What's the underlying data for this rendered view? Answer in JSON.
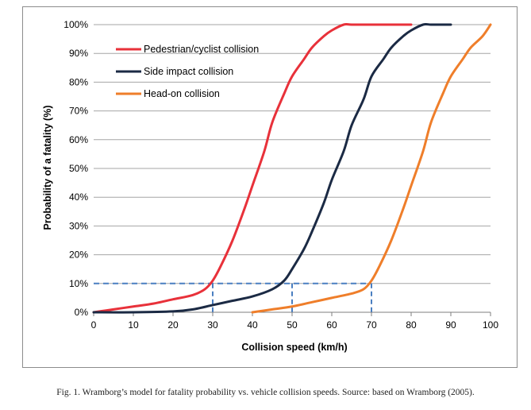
{
  "caption": "Fig. 1. Wramborg’s model for fatality probability vs. vehicle collision speeds. Source: based on Wramborg (2005).",
  "chart_data": {
    "type": "line",
    "title": "",
    "xlabel": "Collision speed (km/h)",
    "ylabel": "Probability of a fatality (%)",
    "xlim": [
      0,
      100
    ],
    "ylim": [
      0,
      100
    ],
    "x_ticks": [
      "0",
      "10",
      "20",
      "30",
      "40",
      "50",
      "60",
      "70",
      "80",
      "90",
      "100"
    ],
    "y_ticks": [
      "0%",
      "10%",
      "20%",
      "30%",
      "40%",
      "50%",
      "60%",
      "70%",
      "80%",
      "90%",
      "100%"
    ],
    "grid": "horizontal",
    "legend_position": "top-left",
    "series": [
      {
        "name": "Pedestrian/cyclist collision",
        "color": "#e8313a",
        "x": [
          0,
          5,
          10,
          15,
          20,
          25,
          28,
          30,
          32,
          35,
          38,
          40,
          43,
          45,
          48,
          50,
          53,
          55,
          58,
          60,
          63,
          65,
          70,
          75,
          80
        ],
        "y": [
          0,
          1,
          2,
          3,
          4.5,
          6,
          8,
          11,
          16,
          25,
          36,
          44,
          56,
          66,
          76,
          82,
          88,
          92,
          96,
          98,
          100,
          100,
          100,
          100,
          100
        ]
      },
      {
        "name": "Side impact collision",
        "color": "#1b2a44",
        "x": [
          0,
          10,
          20,
          25,
          30,
          35,
          40,
          45,
          48,
          50,
          53,
          55,
          58,
          60,
          63,
          65,
          68,
          70,
          73,
          75,
          78,
          80,
          83,
          85,
          88,
          90
        ],
        "y": [
          0,
          0,
          0.3,
          1,
          2.5,
          4,
          5.5,
          8,
          11,
          15,
          22,
          28,
          38,
          46,
          56,
          65,
          74,
          82,
          88,
          92,
          96,
          98,
          100,
          100,
          100,
          100
        ]
      },
      {
        "name": "Head-on collision",
        "color": "#ef7e2a",
        "x": [
          40,
          45,
          50,
          55,
          60,
          65,
          68,
          70,
          72,
          75,
          78,
          80,
          83,
          85,
          88,
          90,
          93,
          95,
          98,
          100
        ],
        "y": [
          0,
          1,
          2,
          3.5,
          5,
          6.5,
          8,
          11,
          16,
          25,
          36,
          44,
          56,
          66,
          76,
          82,
          88,
          92,
          96,
          100
        ]
      }
    ],
    "reference_lines": {
      "color": "#4a7fc1",
      "y": 10,
      "x": [
        30,
        50,
        70
      ]
    }
  }
}
